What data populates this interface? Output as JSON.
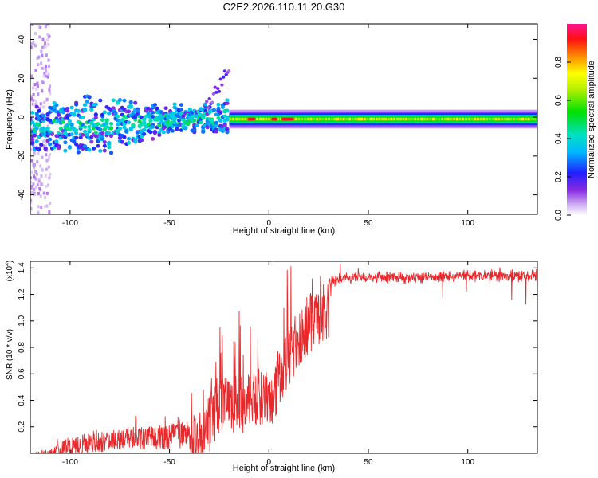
{
  "title": "C2E2.2026.110.11.20.G30",
  "colors": {
    "snr_line": "#e8282a",
    "background": "#ffffff",
    "axis": "#000000"
  },
  "chart_data": [
    {
      "type": "heatmap",
      "xlabel": "Height of straight line (km)",
      "ylabel": "Frequency (Hz)",
      "xlim": [
        -120,
        135
      ],
      "ylim": [
        -50,
        48
      ],
      "xticks": [
        -100,
        -50,
        0,
        50,
        100
      ],
      "yticks": [
        -40,
        -20,
        0,
        20,
        40
      ],
      "colorbar": {
        "label": "Normalized spectral amplitude",
        "range": [
          0,
          1
        ],
        "ticks": [
          "0.0",
          "0.2",
          "0.4",
          "0.6",
          "0.8"
        ],
        "colormap": "rainbow"
      },
      "features": {
        "noisy_region_km": [
          -120,
          -20
        ],
        "stable_line_km": [
          -20,
          135
        ],
        "stable_freq_hz": -1,
        "peak_segments_km": [
          [
            -10,
            -7
          ],
          [
            2,
            4
          ],
          [
            7,
            12
          ]
        ]
      }
    },
    {
      "type": "line",
      "xlabel": "Height of straight line (km)",
      "ylabel": "SNR (10 * v/v)",
      "yscale_label": "(x10",
      "yscale_exponent": "4",
      "xlim": [
        -120,
        135
      ],
      "ylim": [
        0,
        1.45
      ],
      "xticks": [
        -100,
        -50,
        0,
        50,
        100
      ],
      "yticks": [
        "0.2",
        "0.4",
        "0.6",
        "0.8",
        "1.0",
        "1.2",
        "1.4"
      ],
      "series": [
        {
          "name": "SNR",
          "envelope_x": [
            -120,
            -110,
            -105,
            -100,
            -90,
            -80,
            -70,
            -60,
            -50,
            -40,
            -35,
            -30,
            -25,
            -20,
            -15,
            -10,
            -5,
            0,
            5,
            10,
            15,
            20,
            25,
            30,
            35,
            40,
            60,
            80,
            100,
            120,
            135
          ],
          "envelope_y": [
            0.0,
            0.03,
            0.08,
            0.12,
            0.15,
            0.18,
            0.2,
            0.2,
            0.22,
            0.25,
            0.33,
            0.45,
            0.6,
            0.62,
            0.58,
            0.6,
            0.65,
            0.6,
            0.75,
            0.95,
            1.1,
            1.2,
            1.26,
            1.3,
            1.32,
            1.33,
            1.34,
            1.34,
            1.35,
            1.35,
            1.35
          ]
        }
      ]
    }
  ]
}
